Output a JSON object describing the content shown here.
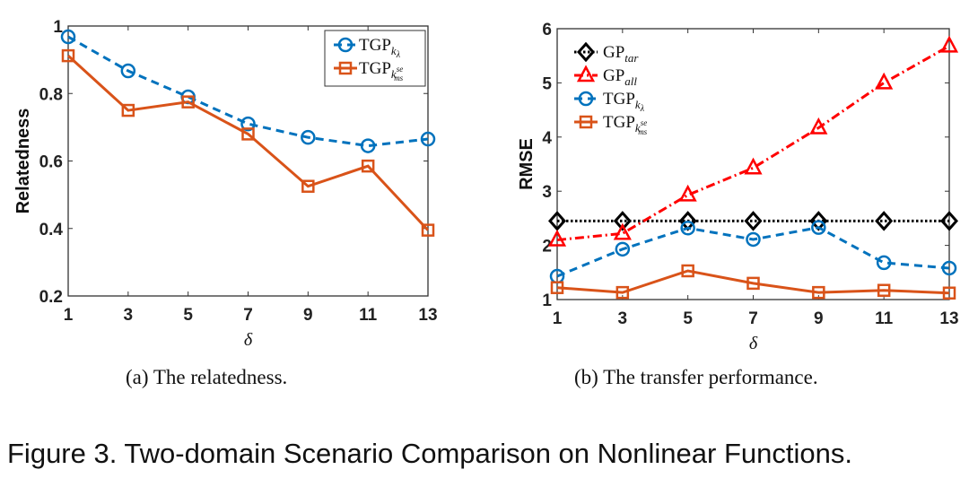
{
  "chart_data": [
    {
      "type": "line",
      "ylabel": "Relatedness",
      "xlabel": "δ",
      "x": [
        1,
        3,
        5,
        7,
        9,
        11,
        13
      ],
      "xticks": [
        "1",
        "3",
        "5",
        "7",
        "9",
        "11",
        "13"
      ],
      "ylim": [
        0.2,
        1.0
      ],
      "yticks": [
        "0.2",
        "0.4",
        "0.6",
        "0.8",
        "1"
      ],
      "yticks_values": [
        0.2,
        0.4,
        0.6,
        0.8,
        1.0
      ],
      "grid": false,
      "legend": "top-right",
      "caption": "(a)  The relatedness.",
      "series": [
        {
          "name": "TGP",
          "sub": "k",
          "subsub": "λ",
          "subsup": "",
          "color": "#0072BD",
          "marker": "circle",
          "dash": "dashed",
          "values": [
            0.968,
            0.867,
            0.79,
            0.71,
            0.67,
            0.645,
            0.665
          ]
        },
        {
          "name": "TGP",
          "sub": "k",
          "subsub": "ms",
          "subsup": "se",
          "color": "#D95319",
          "marker": "square",
          "dash": "solid",
          "values": [
            0.912,
            0.75,
            0.775,
            0.68,
            0.525,
            0.585,
            0.395
          ]
        }
      ]
    },
    {
      "type": "line",
      "ylabel": "RMSE",
      "xlabel": "δ",
      "x": [
        1,
        3,
        5,
        7,
        9,
        11,
        13
      ],
      "xticks": [
        "1",
        "3",
        "5",
        "7",
        "9",
        "11",
        "13"
      ],
      "ylim": [
        1,
        6
      ],
      "yticks": [
        "1",
        "2",
        "3",
        "4",
        "5",
        "6"
      ],
      "yticks_values": [
        1,
        2,
        3,
        4,
        5,
        6
      ],
      "grid": false,
      "legend": "top-left",
      "caption": "(b)  The transfer performance.",
      "series": [
        {
          "name": "GP",
          "sub": "tar",
          "subsub": "",
          "subsup": "",
          "color": "#000000",
          "marker": "diamond",
          "dash": "dotted",
          "values": [
            2.45,
            2.45,
            2.45,
            2.45,
            2.45,
            2.45,
            2.45
          ]
        },
        {
          "name": "GP",
          "sub": "all",
          "subsub": "",
          "subsup": "",
          "color": "#FF0000",
          "marker": "triangle",
          "dash": "dashdot",
          "values": [
            2.1,
            2.22,
            2.93,
            3.43,
            4.17,
            5.0,
            5.68
          ]
        },
        {
          "name": "TGP",
          "sub": "k",
          "subsub": "λ",
          "subsup": "",
          "color": "#0072BD",
          "marker": "circle",
          "dash": "dashed",
          "values": [
            1.43,
            1.93,
            2.32,
            2.11,
            2.33,
            1.68,
            1.58
          ]
        },
        {
          "name": "TGP",
          "sub": "k",
          "subsub": "ms",
          "subsup": "se",
          "color": "#D95319",
          "marker": "square",
          "dash": "solid",
          "values": [
            1.22,
            1.13,
            1.53,
            1.3,
            1.13,
            1.17,
            1.12
          ]
        }
      ]
    }
  ],
  "figure_caption": "Figure 3. Two-domain Scenario Comparison on Nonlinear Functions."
}
